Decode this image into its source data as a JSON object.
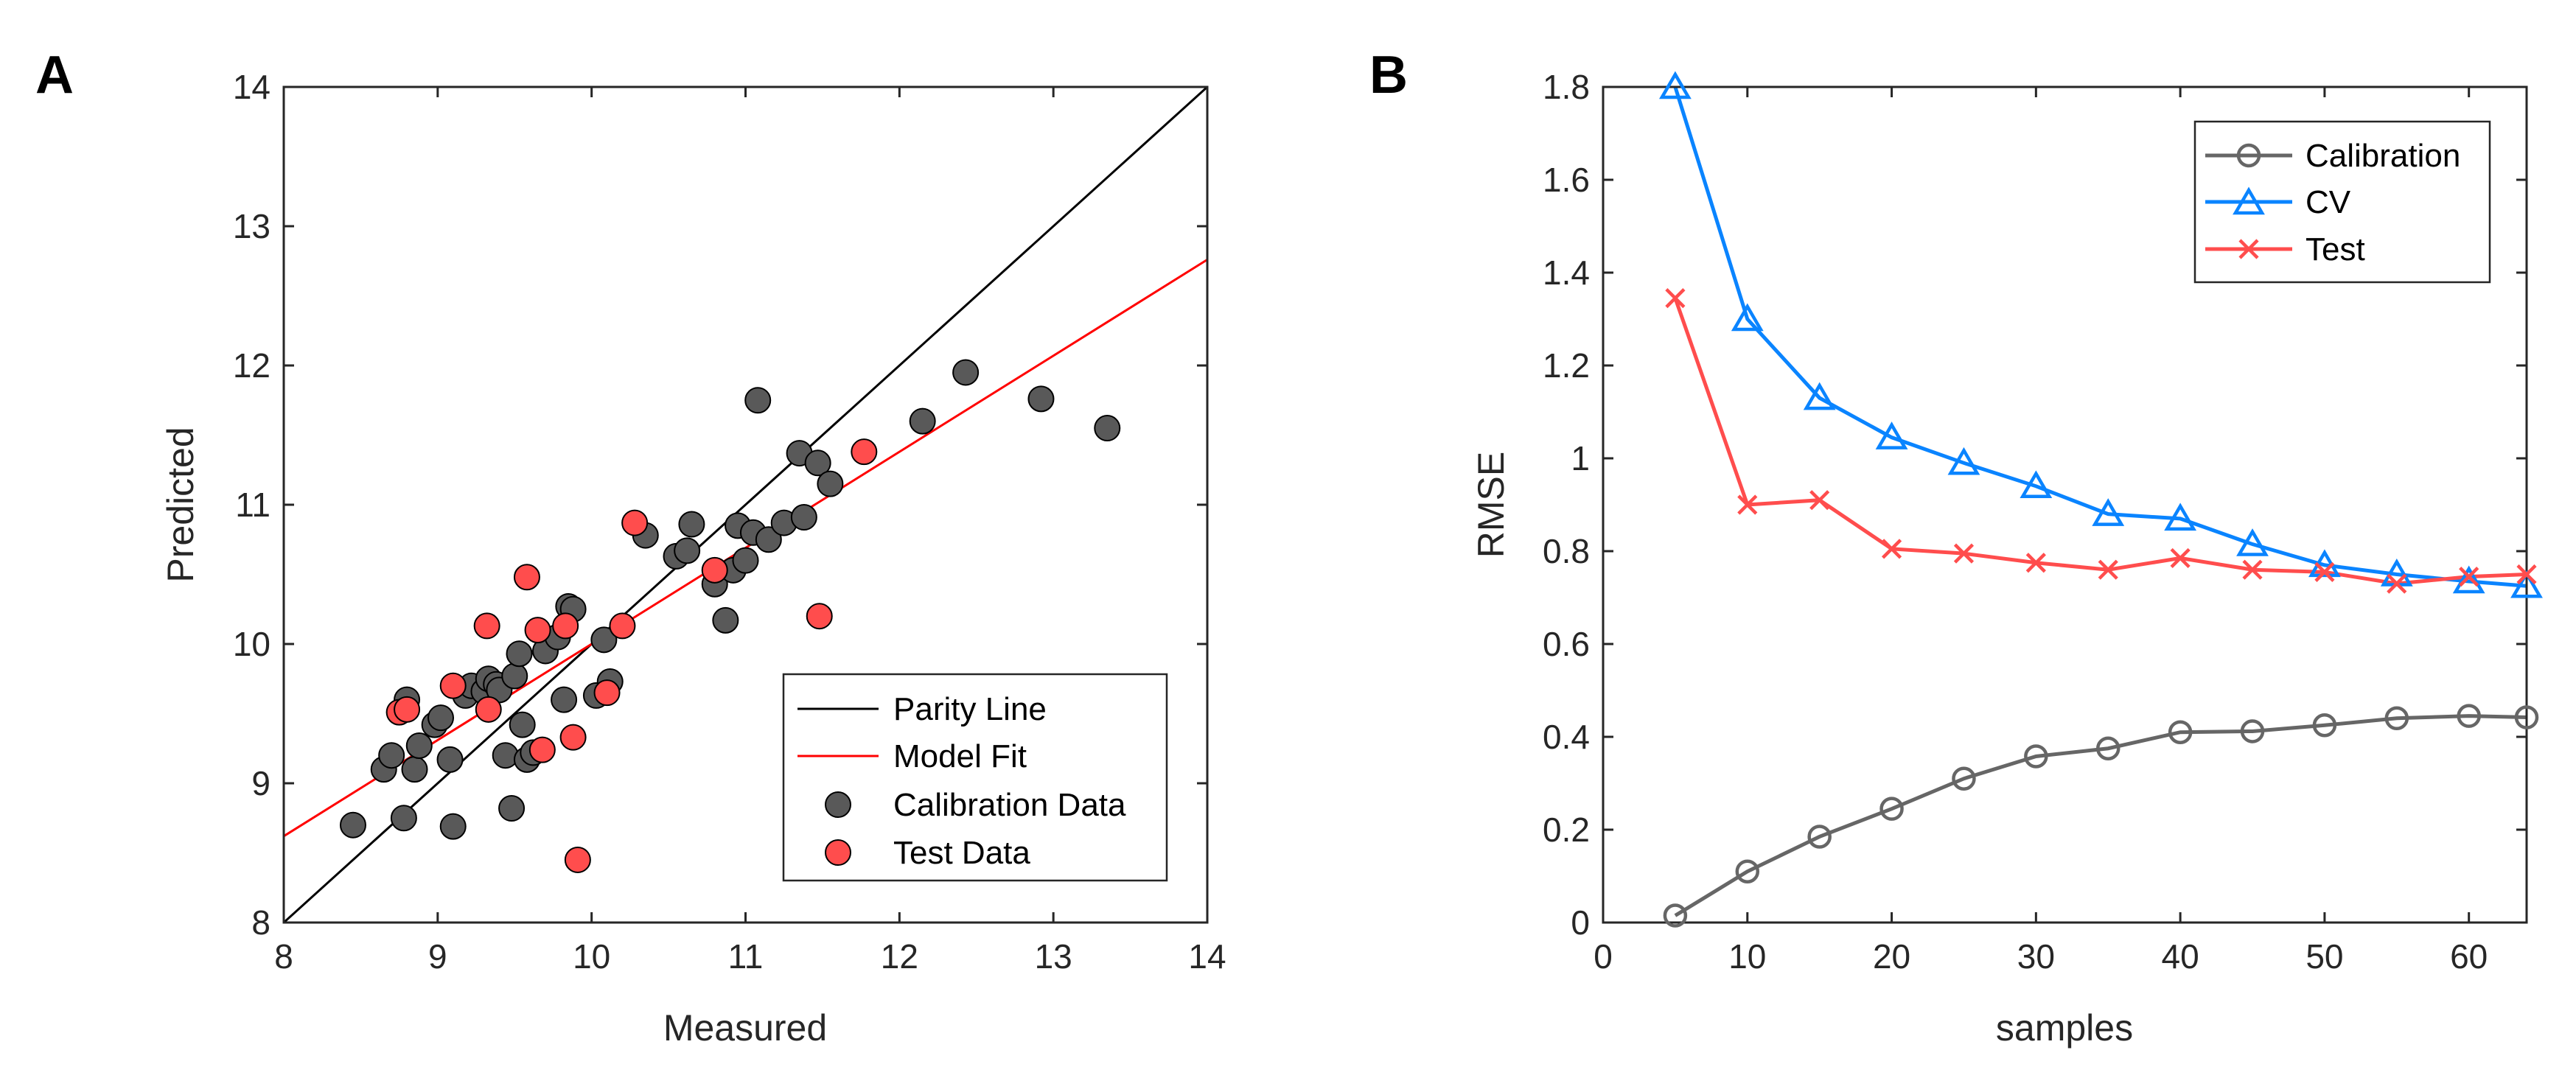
{
  "panels": {
    "a": {
      "label": "A"
    },
    "b": {
      "label": "B"
    }
  },
  "chart_data": [
    {
      "type": "scatter",
      "panel": "A",
      "title": "",
      "xlabel": "Measured",
      "ylabel": "Predicted",
      "xlim": [
        8,
        14
      ],
      "ylim": [
        8,
        14
      ],
      "xticks": [
        8,
        9,
        10,
        11,
        12,
        13,
        14
      ],
      "yticks": [
        8,
        9,
        10,
        11,
        12,
        13,
        14
      ],
      "grid": false,
      "legend_position": "bottom-right",
      "lines": [
        {
          "name": "Parity Line",
          "color": "#000000",
          "x": [
            8,
            14
          ],
          "y": [
            8,
            14
          ]
        },
        {
          "name": "Model Fit",
          "color": "#ff0000",
          "x": [
            8,
            14
          ],
          "y": [
            8.62,
            12.76
          ]
        }
      ],
      "series": [
        {
          "name": "Calibration Data",
          "color": "#595959",
          "edge": "#000000",
          "points": [
            [
              8.45,
              8.7
            ],
            [
              8.65,
              9.1
            ],
            [
              8.7,
              9.2
            ],
            [
              8.78,
              8.75
            ],
            [
              8.8,
              9.6
            ],
            [
              8.85,
              9.1
            ],
            [
              8.88,
              9.27
            ],
            [
              8.98,
              9.42
            ],
            [
              9.02,
              9.47
            ],
            [
              9.08,
              9.17
            ],
            [
              9.1,
              8.69
            ],
            [
              9.18,
              9.63
            ],
            [
              9.22,
              9.7
            ],
            [
              9.3,
              9.66
            ],
            [
              9.33,
              9.75
            ],
            [
              9.38,
              9.71
            ],
            [
              9.4,
              9.67
            ],
            [
              9.44,
              9.2
            ],
            [
              9.48,
              8.82
            ],
            [
              9.5,
              9.77
            ],
            [
              9.53,
              9.93
            ],
            [
              9.55,
              9.42
            ],
            [
              9.58,
              9.17
            ],
            [
              9.62,
              9.22
            ],
            [
              9.7,
              9.95
            ],
            [
              9.78,
              10.05
            ],
            [
              9.82,
              9.6
            ],
            [
              9.85,
              10.27
            ],
            [
              9.88,
              10.25
            ],
            [
              10.03,
              9.63
            ],
            [
              10.08,
              10.03
            ],
            [
              10.12,
              9.73
            ],
            [
              10.35,
              10.78
            ],
            [
              10.55,
              10.63
            ],
            [
              10.62,
              10.67
            ],
            [
              10.65,
              10.86
            ],
            [
              10.8,
              10.43
            ],
            [
              10.87,
              10.17
            ],
            [
              10.92,
              10.53
            ],
            [
              10.95,
              10.85
            ],
            [
              11.0,
              10.6
            ],
            [
              11.05,
              10.8
            ],
            [
              11.08,
              11.75
            ],
            [
              11.15,
              10.75
            ],
            [
              11.25,
              10.87
            ],
            [
              11.35,
              11.37
            ],
            [
              11.38,
              10.91
            ],
            [
              11.47,
              11.3
            ],
            [
              11.55,
              11.15
            ],
            [
              12.15,
              11.6
            ],
            [
              12.43,
              11.95
            ],
            [
              12.92,
              11.76
            ],
            [
              13.35,
              11.55
            ]
          ]
        },
        {
          "name": "Test Data",
          "color": "#ff4d4d",
          "edge": "#000000",
          "points": [
            [
              8.75,
              9.51
            ],
            [
              8.8,
              9.53
            ],
            [
              9.1,
              9.7
            ],
            [
              9.32,
              10.13
            ],
            [
              9.33,
              9.53
            ],
            [
              9.58,
              10.48
            ],
            [
              9.65,
              10.1
            ],
            [
              9.68,
              9.24
            ],
            [
              9.83,
              10.13
            ],
            [
              9.88,
              9.33
            ],
            [
              9.91,
              8.45
            ],
            [
              10.1,
              9.65
            ],
            [
              10.2,
              10.13
            ],
            [
              10.28,
              10.87
            ],
            [
              10.8,
              10.53
            ],
            [
              11.48,
              10.2
            ],
            [
              11.77,
              11.38
            ]
          ]
        }
      ],
      "legend": [
        "Parity Line",
        "Model Fit",
        "Calibration Data",
        "Test Data"
      ]
    },
    {
      "type": "line",
      "panel": "B",
      "title": "",
      "xlabel": "samples",
      "ylabel": "RMSE",
      "xlim": [
        0,
        64
      ],
      "ylim": [
        0,
        1.8
      ],
      "xticks": [
        0,
        10,
        20,
        30,
        40,
        50,
        60
      ],
      "yticks": [
        0,
        0.2,
        0.4,
        0.6,
        0.8,
        1,
        1.2,
        1.4,
        1.6,
        1.8
      ],
      "ytick_labels": [
        "0",
        "0.2",
        "0.4",
        "0.6",
        "0.8",
        "1",
        "1.2",
        "1.4",
        "1.6",
        "1.8"
      ],
      "grid": false,
      "legend_position": "top-right",
      "x": [
        5,
        10,
        15,
        20,
        25,
        30,
        35,
        40,
        45,
        50,
        55,
        60,
        64
      ],
      "series": [
        {
          "name": "Calibration",
          "color": "#666666",
          "marker": "circle",
          "values": [
            0.015,
            0.11,
            0.185,
            0.245,
            0.31,
            0.358,
            0.375,
            0.41,
            0.412,
            0.425,
            0.44,
            0.445,
            0.442
          ]
        },
        {
          "name": "CV",
          "color": "#0a84ff",
          "marker": "triangle",
          "values": [
            1.8,
            1.3,
            1.13,
            1.045,
            0.99,
            0.94,
            0.88,
            0.87,
            0.815,
            0.77,
            0.75,
            0.735,
            0.725
          ]
        },
        {
          "name": "Test",
          "color": "#ff4d4d",
          "marker": "x",
          "values": [
            1.345,
            0.9,
            0.91,
            0.805,
            0.795,
            0.775,
            0.76,
            0.785,
            0.76,
            0.755,
            0.73,
            0.745,
            0.75
          ]
        }
      ],
      "legend": [
        "Calibration",
        "CV",
        "Test"
      ]
    }
  ]
}
